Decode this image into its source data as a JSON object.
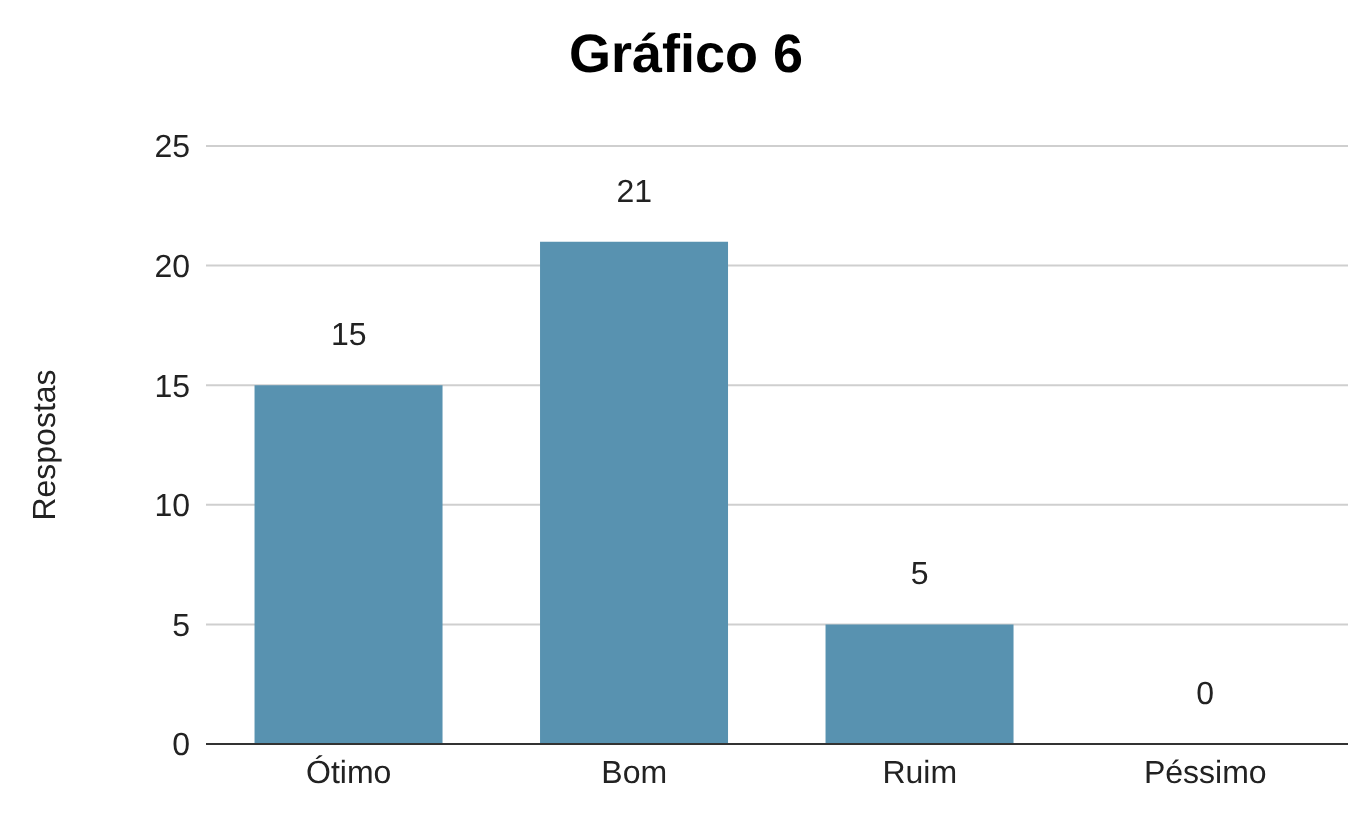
{
  "chart_data": {
    "type": "bar",
    "title": "Gráfico 6",
    "ylabel": "Respostas",
    "categories": [
      "Ótimo",
      "Bom",
      "Ruim",
      "Péssimo"
    ],
    "values": [
      15,
      21,
      5,
      0
    ],
    "color": "#5892b0",
    "ylim": [
      0,
      25
    ],
    "yticks": [
      0,
      5,
      10,
      15,
      20,
      25
    ],
    "grid": "y",
    "data_labels": true
  }
}
